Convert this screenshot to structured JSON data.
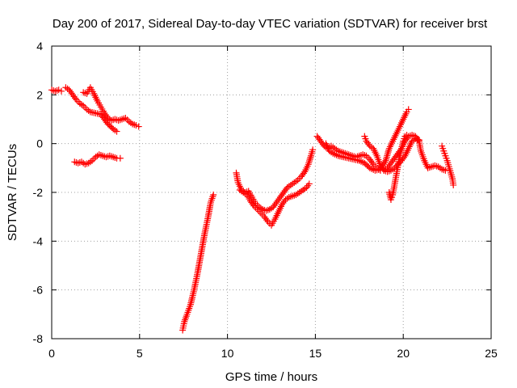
{
  "chart_data": {
    "type": "scatter",
    "title": "Day 200 of 2017, Sidereal Day-to-day VTEC variation (SDTVAR) for receiver brst",
    "xlabel": "GPS time / hours",
    "ylabel": "SDTVAR / TECUs",
    "xlim": [
      0,
      25
    ],
    "ylim": [
      -8,
      4
    ],
    "xticks": [
      0,
      5,
      10,
      15,
      20,
      25
    ],
    "yticks": [
      -8,
      -6,
      -4,
      -2,
      0,
      2,
      4
    ],
    "xtick_labels": [
      "0",
      "5",
      "10",
      "15",
      "20",
      "25"
    ],
    "ytick_labels": [
      "-8",
      "-6",
      "-4",
      "-2",
      "0",
      "2",
      "4"
    ],
    "grid": true,
    "marker": "+",
    "color": "#ff0000",
    "series": [
      {
        "points": [
          [
            0.0,
            2.2
          ],
          [
            0.2,
            2.15
          ],
          [
            0.4,
            2.2
          ],
          [
            0.55,
            2.15
          ]
        ]
      },
      {
        "points": [
          [
            0.8,
            2.3
          ],
          [
            1.0,
            2.2
          ],
          [
            1.2,
            2.0
          ],
          [
            1.4,
            1.8
          ],
          [
            1.6,
            1.65
          ],
          [
            1.8,
            1.55
          ],
          [
            2.0,
            1.4
          ],
          [
            2.2,
            1.3
          ],
          [
            2.5,
            1.25
          ],
          [
            2.8,
            1.2
          ],
          [
            3.0,
            1.0
          ],
          [
            3.2,
            0.8
          ],
          [
            3.5,
            0.6
          ],
          [
            3.7,
            0.5
          ]
        ]
      },
      {
        "points": [
          [
            1.8,
            2.1
          ],
          [
            2.0,
            2.05
          ],
          [
            2.2,
            2.3
          ],
          [
            2.4,
            2.05
          ],
          [
            2.6,
            1.75
          ],
          [
            2.8,
            1.5
          ],
          [
            3.0,
            1.25
          ],
          [
            3.2,
            1.05
          ],
          [
            3.4,
            0.95
          ],
          [
            3.6,
            1.0
          ],
          [
            3.8,
            0.95
          ],
          [
            4.0,
            1.0
          ],
          [
            4.2,
            1.05
          ],
          [
            4.4,
            0.9
          ],
          [
            4.6,
            0.8
          ],
          [
            4.8,
            0.75
          ],
          [
            4.95,
            0.7
          ]
        ]
      },
      {
        "points": [
          [
            1.3,
            -0.75
          ],
          [
            1.5,
            -0.8
          ],
          [
            1.7,
            -0.75
          ],
          [
            1.9,
            -0.85
          ],
          [
            2.1,
            -0.8
          ],
          [
            2.3,
            -0.7
          ],
          [
            2.5,
            -0.55
          ],
          [
            2.7,
            -0.45
          ],
          [
            2.9,
            -0.5
          ],
          [
            3.1,
            -0.55
          ],
          [
            3.3,
            -0.5
          ],
          [
            3.5,
            -0.55
          ],
          [
            3.7,
            -0.6
          ],
          [
            3.9,
            -0.6
          ]
        ]
      },
      {
        "points": [
          [
            7.45,
            -7.65
          ],
          [
            7.55,
            -7.3
          ],
          [
            7.7,
            -7.0
          ],
          [
            7.9,
            -6.6
          ],
          [
            8.1,
            -6.0
          ],
          [
            8.3,
            -5.3
          ],
          [
            8.5,
            -4.5
          ],
          [
            8.7,
            -3.7
          ],
          [
            8.9,
            -3.0
          ],
          [
            9.05,
            -2.4
          ],
          [
            9.2,
            -2.1
          ]
        ]
      },
      {
        "points": [
          [
            10.5,
            -1.2
          ],
          [
            10.6,
            -1.6
          ],
          [
            10.8,
            -1.9
          ],
          [
            11.0,
            -2.0
          ],
          [
            11.2,
            -1.95
          ],
          [
            11.4,
            -2.2
          ],
          [
            11.6,
            -2.45
          ],
          [
            11.8,
            -2.6
          ],
          [
            12.0,
            -2.7
          ],
          [
            12.2,
            -2.75
          ],
          [
            12.4,
            -2.7
          ],
          [
            12.6,
            -2.6
          ],
          [
            12.8,
            -2.4
          ],
          [
            13.0,
            -2.2
          ],
          [
            13.2,
            -2.0
          ],
          [
            13.4,
            -1.8
          ],
          [
            13.6,
            -1.7
          ],
          [
            13.8,
            -1.6
          ],
          [
            14.0,
            -1.5
          ],
          [
            14.2,
            -1.35
          ],
          [
            14.4,
            -1.15
          ],
          [
            14.6,
            -0.85
          ],
          [
            14.75,
            -0.5
          ],
          [
            14.85,
            -0.25
          ]
        ]
      },
      {
        "points": [
          [
            10.7,
            -1.9
          ],
          [
            10.9,
            -2.0
          ],
          [
            11.1,
            -2.1
          ],
          [
            11.3,
            -2.35
          ],
          [
            11.5,
            -2.55
          ],
          [
            11.7,
            -2.7
          ],
          [
            11.9,
            -2.85
          ],
          [
            12.1,
            -3.0
          ],
          [
            12.3,
            -3.2
          ],
          [
            12.5,
            -3.35
          ],
          [
            12.7,
            -3.1
          ],
          [
            12.9,
            -2.8
          ],
          [
            13.1,
            -2.5
          ],
          [
            13.3,
            -2.3
          ],
          [
            13.5,
            -2.2
          ],
          [
            13.7,
            -2.15
          ],
          [
            13.9,
            -2.1
          ],
          [
            14.1,
            -2.0
          ],
          [
            14.3,
            -1.9
          ],
          [
            14.5,
            -1.8
          ],
          [
            14.65,
            -1.65
          ]
        ]
      },
      {
        "points": [
          [
            15.1,
            0.3
          ],
          [
            15.3,
            0.1
          ],
          [
            15.5,
            -0.1
          ],
          [
            15.7,
            -0.2
          ],
          [
            15.9,
            -0.1
          ],
          [
            16.1,
            -0.2
          ],
          [
            16.3,
            -0.3
          ],
          [
            16.5,
            -0.35
          ],
          [
            16.7,
            -0.4
          ],
          [
            16.9,
            -0.45
          ],
          [
            17.1,
            -0.5
          ],
          [
            17.3,
            -0.55
          ],
          [
            17.5,
            -0.5
          ],
          [
            17.7,
            -0.45
          ],
          [
            17.9,
            -0.5
          ],
          [
            18.1,
            -0.65
          ],
          [
            18.3,
            -0.85
          ],
          [
            18.5,
            -1.0
          ],
          [
            18.7,
            -1.1
          ],
          [
            18.9,
            -1.1
          ],
          [
            19.1,
            -1.0
          ],
          [
            19.3,
            -0.8
          ],
          [
            19.5,
            -0.6
          ],
          [
            19.7,
            -0.4
          ],
          [
            19.9,
            -0.2
          ],
          [
            20.1,
            0.1
          ],
          [
            20.3,
            0.3
          ],
          [
            20.5,
            0.35
          ],
          [
            20.7,
            0.3
          ],
          [
            20.9,
            0.1
          ],
          [
            21.0,
            -0.3
          ],
          [
            21.2,
            -0.7
          ],
          [
            21.4,
            -1.0
          ],
          [
            21.6,
            -0.95
          ],
          [
            21.8,
            -0.9
          ],
          [
            22.0,
            -0.95
          ],
          [
            22.2,
            -1.05
          ],
          [
            22.4,
            -1.1
          ]
        ]
      },
      {
        "points": [
          [
            15.6,
            0.0
          ],
          [
            15.8,
            -0.3
          ],
          [
            16.0,
            -0.4
          ],
          [
            16.3,
            -0.5
          ],
          [
            16.6,
            -0.55
          ],
          [
            16.9,
            -0.6
          ],
          [
            17.2,
            -0.65
          ],
          [
            17.5,
            -0.7
          ],
          [
            17.8,
            -0.8
          ],
          [
            18.1,
            -1.0
          ],
          [
            18.4,
            -1.1
          ],
          [
            18.7,
            -1.05
          ],
          [
            19.0,
            -0.7
          ],
          [
            19.2,
            -0.2
          ],
          [
            19.4,
            0.1
          ],
          [
            19.6,
            0.4
          ],
          [
            19.8,
            0.7
          ],
          [
            20.0,
            1.0
          ],
          [
            20.2,
            1.3
          ],
          [
            20.3,
            1.4
          ]
        ]
      },
      {
        "points": [
          [
            17.8,
            0.3
          ],
          [
            17.9,
            0.1
          ],
          [
            18.1,
            -0.1
          ],
          [
            18.3,
            -0.2
          ],
          [
            18.5,
            -0.5
          ],
          [
            18.7,
            -0.9
          ],
          [
            18.9,
            -1.1
          ],
          [
            19.1,
            -1.15
          ],
          [
            19.3,
            -1.1
          ],
          [
            19.5,
            -1.0
          ],
          [
            19.7,
            -0.85
          ],
          [
            19.9,
            -0.7
          ],
          [
            20.1,
            -0.5
          ],
          [
            20.3,
            -0.2
          ],
          [
            20.5,
            0.1
          ],
          [
            20.7,
            0.2
          ],
          [
            20.9,
            0.15
          ]
        ]
      },
      {
        "points": [
          [
            19.2,
            -2.0
          ],
          [
            19.3,
            -2.3
          ],
          [
            19.4,
            -2.1
          ],
          [
            19.5,
            -1.7
          ],
          [
            19.6,
            -1.3
          ],
          [
            19.7,
            -0.9
          ],
          [
            19.8,
            -0.5
          ],
          [
            19.9,
            -0.2
          ],
          [
            20.0,
            0.1
          ],
          [
            20.1,
            0.3
          ],
          [
            20.2,
            0.35
          ]
        ]
      },
      {
        "points": [
          [
            22.2,
            -0.1
          ],
          [
            22.3,
            -0.3
          ],
          [
            22.4,
            -0.5
          ],
          [
            22.5,
            -0.7
          ],
          [
            22.6,
            -0.95
          ],
          [
            22.7,
            -1.2
          ],
          [
            22.8,
            -1.45
          ],
          [
            22.85,
            -1.7
          ]
        ]
      }
    ]
  }
}
